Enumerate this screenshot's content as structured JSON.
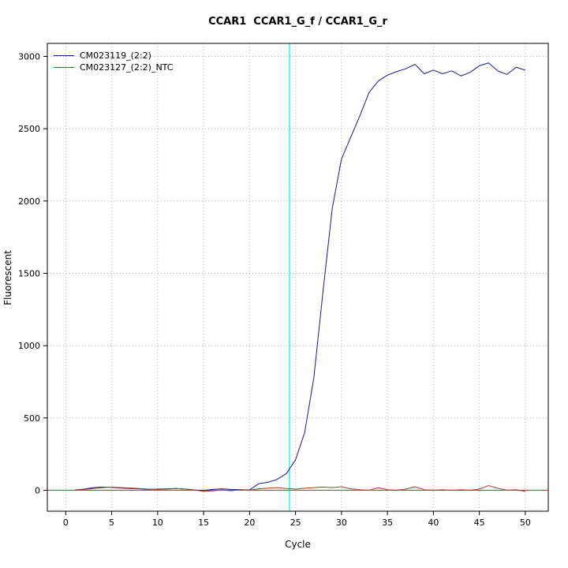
{
  "chart_data": {
    "type": "line",
    "title": "CCAR1  CCAR1_G_f / CCAR1_G_r",
    "xlabel": "Cycle",
    "ylabel": "Fluorescent",
    "xlim": [
      -2,
      52.5
    ],
    "ylim": [
      -145,
      3090
    ],
    "x_ticks": [
      0,
      5,
      10,
      15,
      20,
      25,
      30,
      35,
      40,
      45,
      50
    ],
    "y_ticks": [
      0,
      500,
      1000,
      1500,
      2000,
      2500,
      3000
    ],
    "grid": true,
    "grid_color": "#b3b3b3",
    "legend_position": "top-left",
    "frame_color": "#000000",
    "threshold_line": {
      "axis": "x",
      "value": 24.35,
      "color": "#00ffff"
    },
    "baseline": {
      "axis": "y",
      "value": 0,
      "color": "#a33a2a"
    },
    "cycles": [
      1,
      2,
      3,
      4,
      5,
      6,
      7,
      8,
      9,
      10,
      11,
      12,
      13,
      14,
      15,
      16,
      17,
      18,
      19,
      20,
      21,
      22,
      23,
      24,
      25,
      26,
      27,
      28,
      29,
      30,
      31,
      32,
      33,
      34,
      35,
      36,
      37,
      38,
      39,
      40,
      41,
      42,
      43,
      44,
      45,
      46,
      47,
      48,
      49,
      50
    ],
    "series": [
      {
        "name": "CM023119_(2:2)",
        "color": "#1a1a8f",
        "values": [
          2,
          8,
          18,
          22,
          20,
          15,
          12,
          10,
          6,
          8,
          10,
          12,
          8,
          2,
          -2,
          6,
          10,
          6,
          4,
          2,
          45,
          55,
          75,
          115,
          210,
          400,
          780,
          1380,
          1950,
          2290,
          2440,
          2590,
          2750,
          2830,
          2870,
          2895,
          2915,
          2945,
          2880,
          2905,
          2880,
          2900,
          2865,
          2890,
          2935,
          2955,
          2900,
          2875,
          2925,
          2905
        ]
      },
      {
        "name": "CM023127_(2:2)_NTC",
        "color": "#a33a2a",
        "values": [
          2,
          5,
          12,
          18,
          22,
          18,
          15,
          12,
          8,
          5,
          8,
          12,
          8,
          2,
          -8,
          -4,
          2,
          -4,
          4,
          0,
          10,
          14,
          18,
          12,
          8,
          14,
          18,
          22,
          18,
          24,
          10,
          4,
          0,
          18,
          4,
          0,
          8,
          24,
          4,
          0,
          4,
          0,
          4,
          0,
          8,
          32,
          14,
          0,
          4,
          -8
        ]
      }
    ]
  }
}
